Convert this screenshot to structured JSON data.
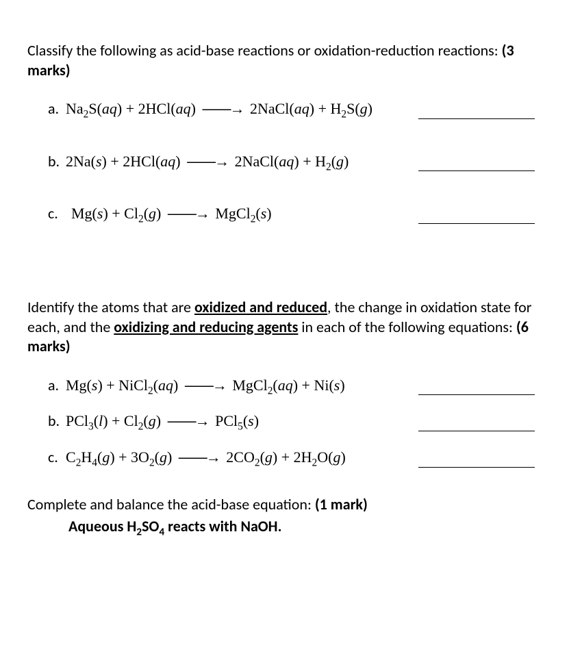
{
  "q1": {
    "prompt_a": "Classify the following as acid-base reactions or oxidation-reduction reactions: ",
    "marks": "(3 marks)",
    "items": [
      {
        "label": "a.",
        "eqn": "Na<span class='sub'>2</span>S(<i>aq</i>) + 2HCl(<i>aq</i>) <span class='arrow'>——→</span> 2NaCl(<i>aq</i>) + H<span class='sub'>2</span>S(<i>g</i>)"
      },
      {
        "label": "b.",
        "eqn": "2Na(<i>s</i>) + 2HCl(<i>aq</i>) <span class='arrow'>——→</span> 2NaCl(<i>aq</i>) + H<span class='sub'>2</span>(<i>g</i>)"
      },
      {
        "label": "c.",
        "eqn": "Mg(<i>s</i>) + Cl<span class='sub'>2</span>(<i>g</i>) <span class='arrow'>——→</span> MgCl<span class='sub'>2</span>(<i>s</i>)"
      }
    ]
  },
  "q2": {
    "prompt_a": "Identify the atoms that are ",
    "u1": "oxidized and reduced",
    "prompt_b": ", the change in oxidation state for each, and the ",
    "u2": "oxidizing and reducing agents",
    "prompt_c": " in each of the following equations: ",
    "marks": "(6 marks)",
    "items": [
      {
        "label": "a.",
        "eqn": "Mg(<i>s</i>) + NiCl<span class='sub'>2</span>(<i>aq</i>) <span class='arrow'>——→</span> MgCl<span class='sub'>2</span>(<i>aq</i>) + Ni(<i>s</i>)"
      },
      {
        "label": "b.",
        "eqn": "PCl<span class='sub'>3</span>(<i>l</i>) + Cl<span class='sub'>2</span>(<i>g</i>) <span class='arrow'>——→</span> PCl<span class='sub'>5</span>(<i>s</i>)"
      },
      {
        "label": "c.",
        "eqn": "C<span class='sub'>2</span>H<span class='sub'>4</span>(<i>g</i>) + 3O<span class='sub'>2</span>(<i>g</i>) <span class='arrow'>——→</span> 2CO<span class='sub'>2</span>(<i>g</i>) + 2H<span class='sub'>2</span>O(<i>g</i>)"
      }
    ]
  },
  "q3": {
    "prompt": "Complete and balance the acid-base equation: ",
    "marks": "(1 mark)",
    "statement": "Aqueous H<span class='sub'>2</span>SO<span class='sub'>4</span> reacts with NaOH."
  }
}
